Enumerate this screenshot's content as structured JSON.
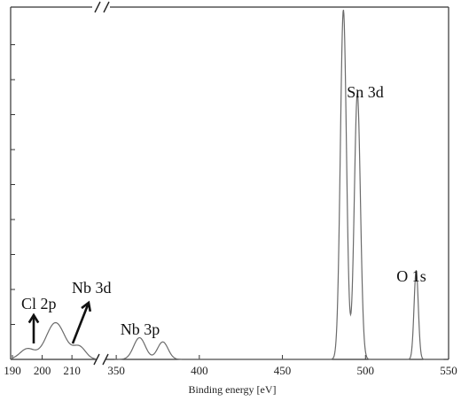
{
  "chart_data": {
    "type": "line",
    "title": "",
    "xlabel": "Binding energy [eV]",
    "ylabel": "",
    "x_segments": [
      {
        "xlim": [
          190,
          218
        ],
        "ticks": [
          190,
          200,
          210
        ]
      },
      {
        "xlim": [
          343,
          550
        ],
        "ticks": [
          350,
          400,
          450,
          500,
          550
        ]
      }
    ],
    "axis_breaks": [
      "top",
      "bottom"
    ],
    "ylim": [
      0,
      1.0
    ],
    "y_ticks": [
      0.1,
      0.2,
      0.3,
      0.4,
      0.5,
      0.6,
      0.7,
      0.8,
      0.9
    ],
    "y_ticklabels_shown": false,
    "grid": false,
    "series": [
      {
        "peaks": [
          {
            "center": 195,
            "height": 0.03,
            "width": 3.5
          },
          {
            "center": 204.5,
            "height": 0.105,
            "width": 4.5
          },
          {
            "center": 212.5,
            "height": 0.035,
            "width": 3.0
          },
          {
            "center": 364,
            "height": 0.062,
            "width": 5.0
          },
          {
            "center": 378,
            "height": 0.05,
            "width": 4.5
          },
          {
            "center": 486.7,
            "height": 1.0,
            "width": 2.6
          },
          {
            "center": 495.1,
            "height": 0.76,
            "width": 2.6
          },
          {
            "center": 530.5,
            "height": 0.255,
            "width": 1.8
          }
        ]
      }
    ],
    "annotations": [
      {
        "label": "Sn 3d",
        "x": 492,
        "y": 0.8
      },
      {
        "label": "O 1s",
        "x": 530,
        "y": 0.3
      },
      {
        "label": "Nb 3p",
        "x": 370,
        "y": 0.07
      },
      {
        "label": "Cl 2p",
        "x": 197,
        "y": 0.17
      },
      {
        "label": "Nb 3d",
        "x": 214,
        "y": 0.2
      }
    ]
  }
}
